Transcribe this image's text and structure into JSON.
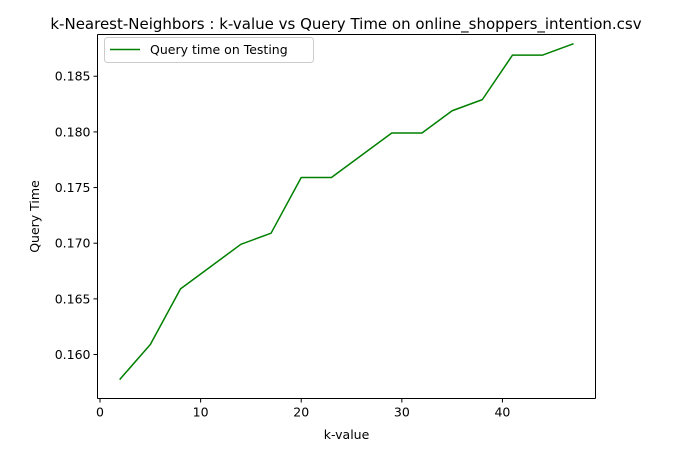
{
  "chart_data": {
    "type": "line",
    "title": "k-Nearest-Neighbors : k-value vs Query Time on online_shoppers_intention.csv",
    "xlabel": "k-value",
    "ylabel": "Query Time",
    "xlim": [
      -0.25,
      49.25
    ],
    "ylim": [
      0.15605,
      0.18875
    ],
    "xticks": [
      0,
      10,
      20,
      30,
      40
    ],
    "xtick_labels": [
      "0",
      "10",
      "20",
      "30",
      "40"
    ],
    "yticks": [
      0.16,
      0.165,
      0.17,
      0.175,
      0.18,
      0.185
    ],
    "ytick_labels": [
      "0.160",
      "0.165",
      "0.170",
      "0.175",
      "0.180",
      "0.185"
    ],
    "grid": false,
    "legend_position": "upper left",
    "series": [
      {
        "name": "Query time on Testing",
        "color": "#008000",
        "x": [
          2,
          5,
          8,
          11,
          14,
          17,
          20,
          23,
          26,
          29,
          32,
          35,
          38,
          41,
          44,
          47
        ],
        "y": [
          0.1578,
          0.1609,
          0.1659,
          0.1679,
          0.1699,
          0.1709,
          0.1759,
          0.1759,
          0.1779,
          0.1799,
          0.1799,
          0.1819,
          0.1829,
          0.1869,
          0.1869,
          0.1879
        ]
      }
    ]
  }
}
